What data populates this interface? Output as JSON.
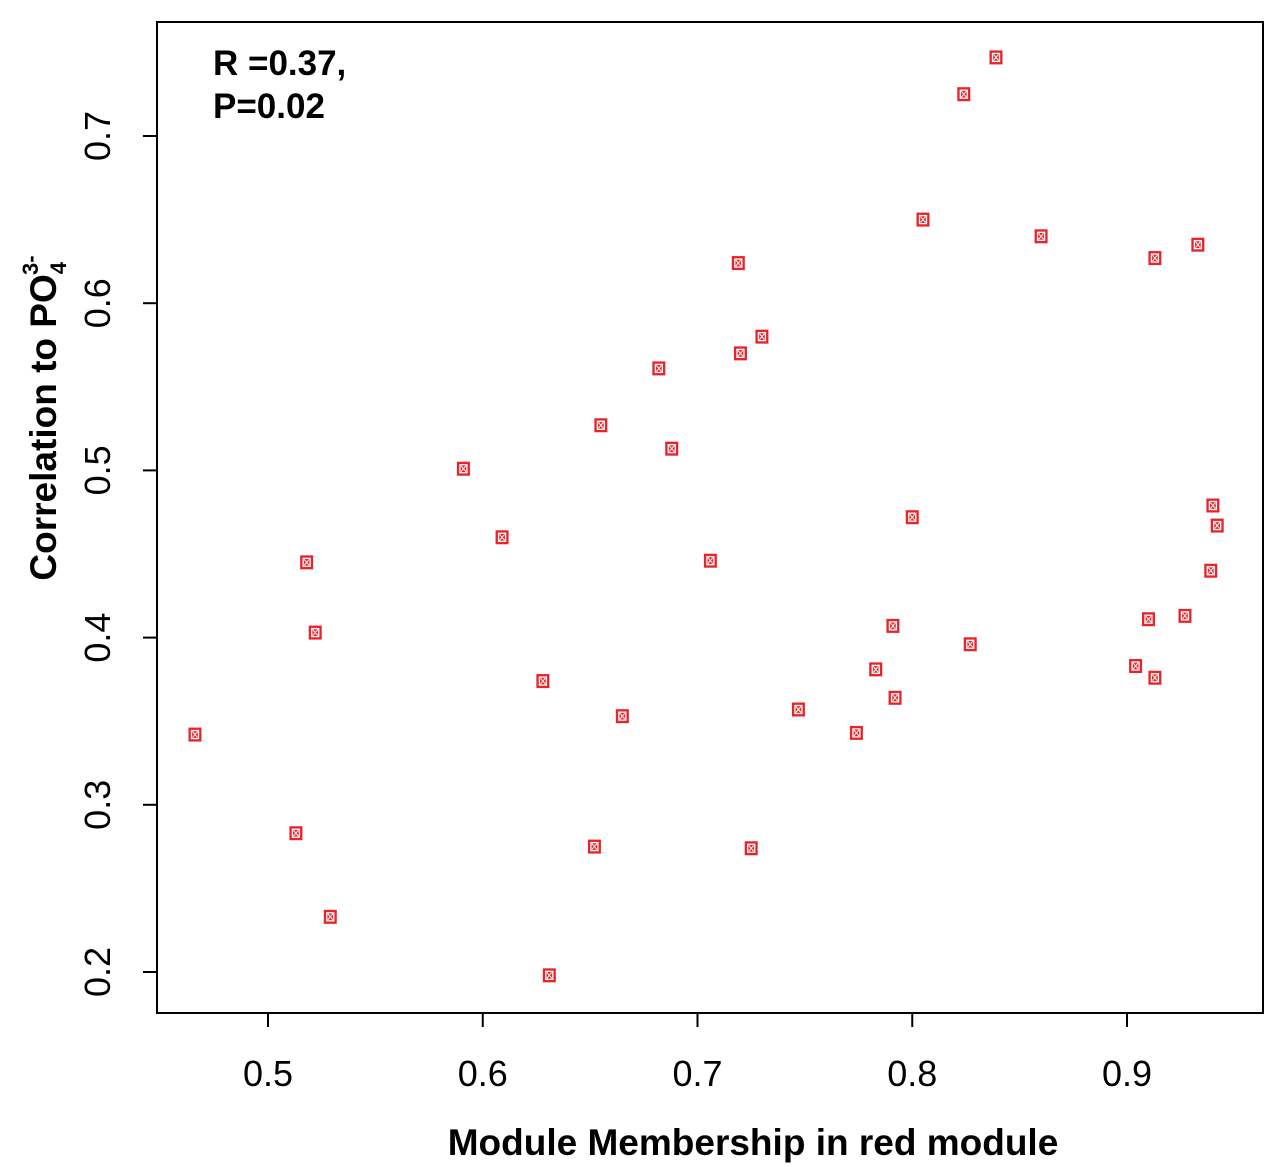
{
  "chart_data": {
    "type": "scatter",
    "xlabel": "Module Membership in red module",
    "ylabel": {
      "main": "Correlation to PO",
      "subscript": "4",
      "superscript": "3-"
    },
    "annotation": [
      "R =0.37,",
      "P=0.02"
    ],
    "xlim": [
      0.45,
      0.945
    ],
    "ylim": [
      0.18,
      0.755
    ],
    "xticks": [
      0.5,
      0.6,
      0.7,
      0.8,
      0.9
    ],
    "yticks": [
      0.2,
      0.3,
      0.4,
      0.5,
      0.6,
      0.7
    ],
    "xtick_labels": [
      "0.5",
      "0.6",
      "0.7",
      "0.8",
      "0.9"
    ],
    "ytick_labels": [
      "0.2",
      "0.3",
      "0.4",
      "0.5",
      "0.6",
      "0.7"
    ],
    "grid": false,
    "marker_color": "#e8232a",
    "points": [
      {
        "x": 0.466,
        "y": 0.342
      },
      {
        "x": 0.513,
        "y": 0.283
      },
      {
        "x": 0.518,
        "y": 0.445
      },
      {
        "x": 0.522,
        "y": 0.403
      },
      {
        "x": 0.529,
        "y": 0.233
      },
      {
        "x": 0.591,
        "y": 0.501
      },
      {
        "x": 0.609,
        "y": 0.46
      },
      {
        "x": 0.628,
        "y": 0.374
      },
      {
        "x": 0.631,
        "y": 0.198
      },
      {
        "x": 0.652,
        "y": 0.275
      },
      {
        "x": 0.655,
        "y": 0.527
      },
      {
        "x": 0.665,
        "y": 0.353
      },
      {
        "x": 0.682,
        "y": 0.561
      },
      {
        "x": 0.688,
        "y": 0.513
      },
      {
        "x": 0.706,
        "y": 0.446
      },
      {
        "x": 0.719,
        "y": 0.624
      },
      {
        "x": 0.72,
        "y": 0.57
      },
      {
        "x": 0.725,
        "y": 0.274
      },
      {
        "x": 0.73,
        "y": 0.58
      },
      {
        "x": 0.747,
        "y": 0.357
      },
      {
        "x": 0.774,
        "y": 0.343
      },
      {
        "x": 0.783,
        "y": 0.381
      },
      {
        "x": 0.791,
        "y": 0.407
      },
      {
        "x": 0.792,
        "y": 0.364
      },
      {
        "x": 0.8,
        "y": 0.472
      },
      {
        "x": 0.805,
        "y": 0.65
      },
      {
        "x": 0.824,
        "y": 0.725
      },
      {
        "x": 0.827,
        "y": 0.396
      },
      {
        "x": 0.839,
        "y": 0.747
      },
      {
        "x": 0.86,
        "y": 0.64
      },
      {
        "x": 0.904,
        "y": 0.383
      },
      {
        "x": 0.91,
        "y": 0.411
      },
      {
        "x": 0.913,
        "y": 0.627
      },
      {
        "x": 0.913,
        "y": 0.376
      },
      {
        "x": 0.927,
        "y": 0.413
      },
      {
        "x": 0.933,
        "y": 0.635
      },
      {
        "x": 0.939,
        "y": 0.44
      },
      {
        "x": 0.94,
        "y": 0.479
      },
      {
        "x": 0.942,
        "y": 0.467
      }
    ]
  }
}
